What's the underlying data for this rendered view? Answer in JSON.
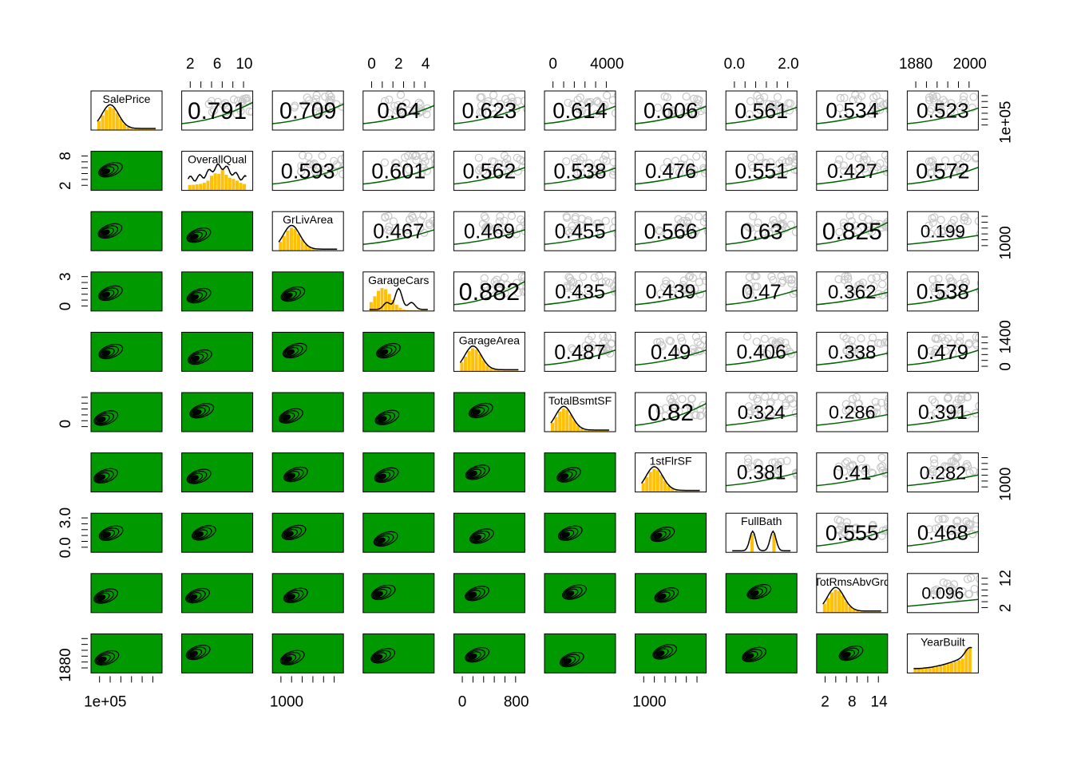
{
  "chart_data": {
    "type": "scatterplot-matrix",
    "variables": [
      "SalePrice",
      "OverallQual",
      "GrLivArea",
      "GarageCars",
      "GarageArea",
      "TotalBsmtSF",
      "1stFlrSF",
      "FullBath",
      "TotRmsAbvGrd",
      "YearBuilt"
    ],
    "upper_panel": "correlation",
    "lower_panel": "density contour",
    "diagonal_panel": "histogram with density curve",
    "correlations": [
      [
        null,
        0.791,
        0.709,
        0.64,
        0.623,
        0.614,
        0.606,
        0.561,
        0.534,
        0.523
      ],
      [
        null,
        null,
        0.593,
        0.601,
        0.562,
        0.538,
        0.476,
        0.551,
        0.427,
        0.572
      ],
      [
        null,
        null,
        null,
        0.467,
        0.469,
        0.455,
        0.566,
        0.63,
        0.825,
        0.199
      ],
      [
        null,
        null,
        null,
        null,
        0.882,
        0.435,
        0.439,
        0.47,
        0.362,
        0.538
      ],
      [
        null,
        null,
        null,
        null,
        null,
        0.487,
        0.49,
        0.406,
        0.338,
        0.479
      ],
      [
        null,
        null,
        null,
        null,
        null,
        null,
        0.82,
        0.324,
        0.286,
        0.391
      ],
      [
        null,
        null,
        null,
        null,
        null,
        null,
        null,
        0.381,
        0.41,
        0.282
      ],
      [
        null,
        null,
        null,
        null,
        null,
        null,
        null,
        null,
        0.555,
        0.468
      ],
      [
        null,
        null,
        null,
        null,
        null,
        null,
        null,
        null,
        null,
        0.096
      ]
    ],
    "correlation_labels": [
      [
        "",
        "0.791",
        "0.709",
        "0.64",
        "0.623",
        "0.614",
        "0.606",
        "0.561",
        "0.534",
        "0.523"
      ],
      [
        "",
        "",
        "0.593",
        "0.601",
        "0.562",
        "0.538",
        "0.476",
        "0.551",
        "0.427",
        "0.572"
      ],
      [
        "",
        "",
        "",
        "0.467",
        "0.469",
        "0.455",
        "0.566",
        "0.63",
        "0.825",
        "0.199"
      ],
      [
        "",
        "",
        "",
        "",
        "0.882",
        "0.435",
        "0.439",
        "0.47",
        "0.362",
        "0.538"
      ],
      [
        "",
        "",
        "",
        "",
        "",
        "0.487",
        "0.49",
        "0.406",
        "0.338",
        "0.479"
      ],
      [
        "",
        "",
        "",
        "",
        "",
        "",
        "0.82",
        "0.324",
        "0.286",
        "0.391"
      ],
      [
        "",
        "",
        "",
        "",
        "",
        "",
        "",
        "0.381",
        "0.41",
        "0.282"
      ],
      [
        "",
        "",
        "",
        "",
        "",
        "",
        "",
        "",
        "0.555",
        "0.468"
      ],
      [
        "",
        "",
        "",
        "",
        "",
        "",
        "",
        "",
        "",
        "0.096"
      ]
    ],
    "top_axis_labels": [
      {
        "column": 1,
        "labels": [
          "2",
          "6",
          "10"
        ]
      },
      {
        "column": 3,
        "labels": [
          "0",
          "2",
          "4"
        ]
      },
      {
        "column": 5,
        "labels": [
          "0",
          "4000"
        ]
      },
      {
        "column": 7,
        "labels": [
          "0.0",
          "2.0"
        ]
      },
      {
        "column": 9,
        "labels": [
          "1880",
          "2000"
        ]
      }
    ],
    "bottom_axis_labels": [
      {
        "column": 0,
        "labels": [
          "1e+05"
        ]
      },
      {
        "column": 2,
        "labels": [
          "1000"
        ]
      },
      {
        "column": 4,
        "labels": [
          "0",
          "800"
        ]
      },
      {
        "column": 6,
        "labels": [
          "1000"
        ]
      },
      {
        "column": 8,
        "labels": [
          "2",
          "8",
          "14"
        ]
      }
    ],
    "left_axis_labels": [
      {
        "row": 1,
        "labels": [
          "2",
          "8"
        ]
      },
      {
        "row": 3,
        "labels": [
          "0",
          "3"
        ]
      },
      {
        "row": 5,
        "labels": [
          "0"
        ]
      },
      {
        "row": 7,
        "labels": [
          "0.0",
          "3.0"
        ]
      },
      {
        "row": 9,
        "labels": [
          "1880"
        ]
      }
    ],
    "right_axis_labels": [
      {
        "row": 0,
        "labels": [
          "1e+05"
        ]
      },
      {
        "row": 2,
        "labels": [
          "1000"
        ]
      },
      {
        "row": 4,
        "labels": [
          "0",
          "1400"
        ]
      },
      {
        "row": 6,
        "labels": [
          "1000"
        ]
      },
      {
        "row": 8,
        "labels": [
          "2",
          "12"
        ]
      }
    ]
  },
  "colors": {
    "contour_background": "#009900",
    "histogram_fill": "#ffc107",
    "scatter_points": "#c8c8c8",
    "smooth_line": "#006400",
    "frame": "#000000"
  }
}
